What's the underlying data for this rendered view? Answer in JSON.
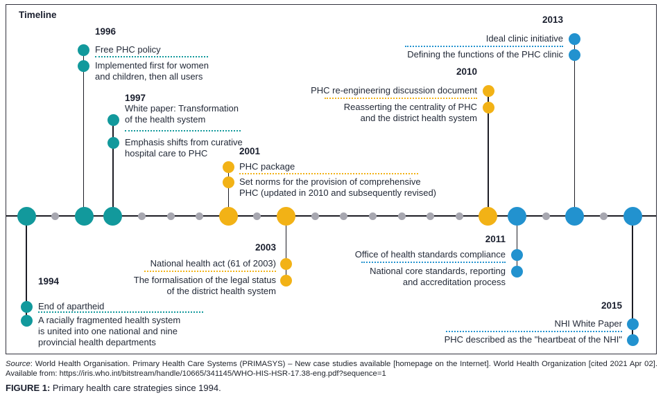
{
  "title": "Timeline",
  "colors": {
    "teal": "#12999C",
    "yellow": "#F2B216",
    "blue": "#2292CF",
    "minor": "#A7A7B0"
  },
  "axis": {
    "years": [
      {
        "year": 1994,
        "category": "teal"
      },
      {
        "year": 1995,
        "category": "minor"
      },
      {
        "year": 1996,
        "category": "teal"
      },
      {
        "year": 1997,
        "category": "teal"
      },
      {
        "year": 1998,
        "category": "minor"
      },
      {
        "year": 1999,
        "category": "minor"
      },
      {
        "year": 2000,
        "category": "minor"
      },
      {
        "year": 2001,
        "category": "yellow"
      },
      {
        "year": 2002,
        "category": "minor"
      },
      {
        "year": 2003,
        "category": "yellow"
      },
      {
        "year": 2004,
        "category": "minor"
      },
      {
        "year": 2005,
        "category": "minor"
      },
      {
        "year": 2006,
        "category": "minor"
      },
      {
        "year": 2007,
        "category": "minor"
      },
      {
        "year": 2008,
        "category": "minor"
      },
      {
        "year": 2009,
        "category": "minor"
      },
      {
        "year": 2010,
        "category": "yellow"
      },
      {
        "year": 2011,
        "category": "blue"
      },
      {
        "year": 2012,
        "category": "minor"
      },
      {
        "year": 2013,
        "category": "blue"
      },
      {
        "year": 2014,
        "category": "minor"
      },
      {
        "year": 2015,
        "category": "blue"
      }
    ]
  },
  "events": [
    {
      "year": "1994",
      "color": "teal",
      "title": "End of apartheid",
      "desc": "A racially fragmented health system\nis united into one national and nine\nprovincial health departments"
    },
    {
      "year": "1996",
      "color": "teal",
      "title": "Free PHC policy",
      "desc": "Implemented first for women\nand children, then all users"
    },
    {
      "year": "1997",
      "color": "teal",
      "title": "White paper: Transformation\nof the health system",
      "desc": "Emphasis shifts from curative\nhospital care to PHC"
    },
    {
      "year": "2001",
      "color": "yellow",
      "title": "PHC package",
      "desc": "Set norms for the provision of comprehensive\nPHC (updated in 2010 and subsequently revised)"
    },
    {
      "year": "2003",
      "color": "yellow",
      "title": "National health act (61 of 2003)",
      "desc": "The formalisation of the legal status\nof the district health system"
    },
    {
      "year": "2010",
      "color": "yellow",
      "title": "PHC re-engineering discussion document",
      "desc": "Reasserting the centrality of PHC\nand the district health system"
    },
    {
      "year": "2011",
      "color": "blue",
      "title": "Office of health standards compliance",
      "desc": "National core standards, reporting\nand accreditation process"
    },
    {
      "year": "2013",
      "color": "blue",
      "title": "Ideal clinic initiative",
      "desc": "Defining the functions of the PHC clinic"
    },
    {
      "year": "2015",
      "color": "blue",
      "title": "NHI White Paper",
      "desc": "PHC described as the \"heartbeat of the NHI\""
    }
  ],
  "footer": {
    "source_label": "Source",
    "source_text": ": World Health Organisation. Primary Health Care Systems (PRIMASYS) – New case studies available [homepage on the Internet]. World Health Organization [cited 2021 Apr 02]. Available from: https://iris.who.int/bitstream/handle/10665/341145/WHO-HIS-HSR-17.38-eng.pdf?sequence=1",
    "figure_label": "FIGURE 1:",
    "figure_caption": " Primary health care strategies since 1994."
  }
}
